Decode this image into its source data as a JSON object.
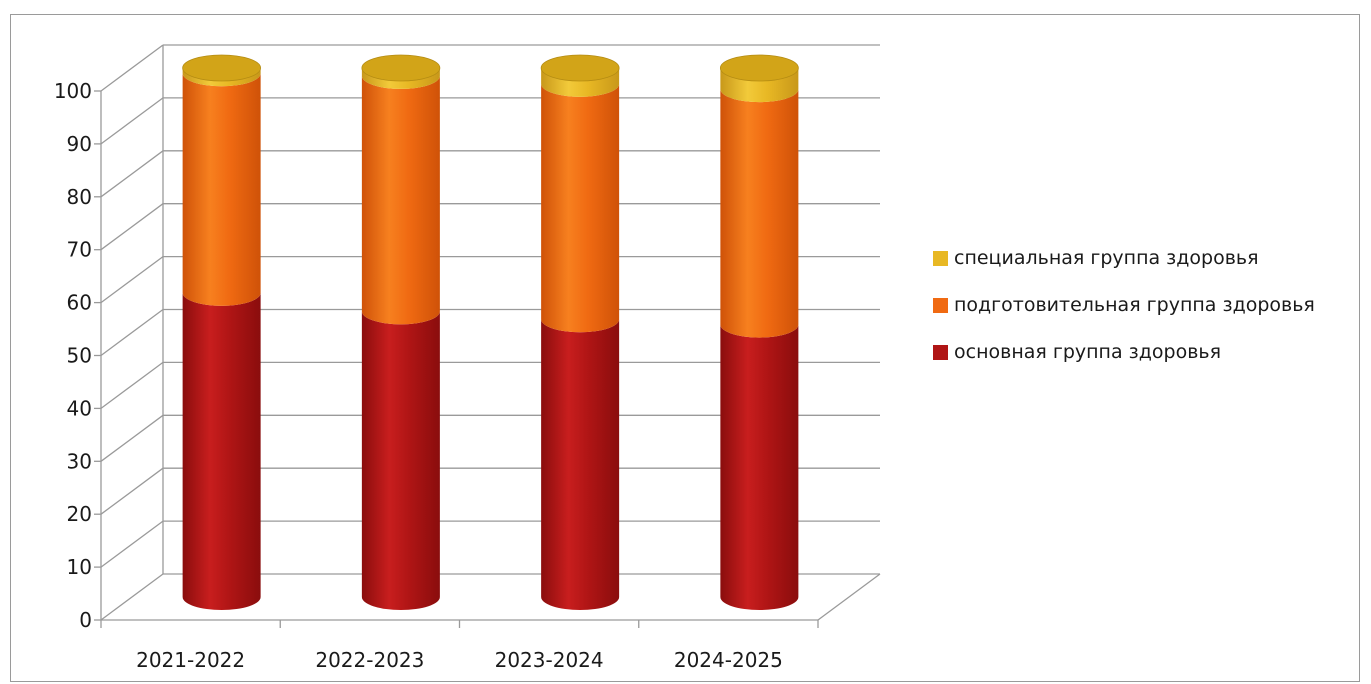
{
  "chart_data": {
    "type": "bar",
    "stacked": true,
    "three_d": true,
    "categories": [
      "2021-2022",
      "2022-2023",
      "2023-2024",
      "2024-2025"
    ],
    "series": [
      {
        "name": "основная группа здоровья",
        "color": "#b01515",
        "values": [
          57.5,
          54,
          52.5,
          51.5
        ]
      },
      {
        "name": "подготовительная группа здоровья",
        "color": "#f06a12",
        "values": [
          41.5,
          44.5,
          44.5,
          44.5
        ]
      },
      {
        "name": "специальная группа здоровья",
        "color": "#e8b824",
        "values": [
          1,
          1.5,
          3,
          4
        ]
      }
    ],
    "y_ticks": [
      "0",
      "10",
      "20",
      "30",
      "40",
      "50",
      "60",
      "70",
      "80",
      "90",
      "100"
    ],
    "ylim": [
      0,
      100
    ],
    "grid": true,
    "legend_position": "right",
    "legend_order": [
      "специальная группа здоровья",
      "подготовительная группа здоровья",
      "основная группа здоровья"
    ]
  }
}
